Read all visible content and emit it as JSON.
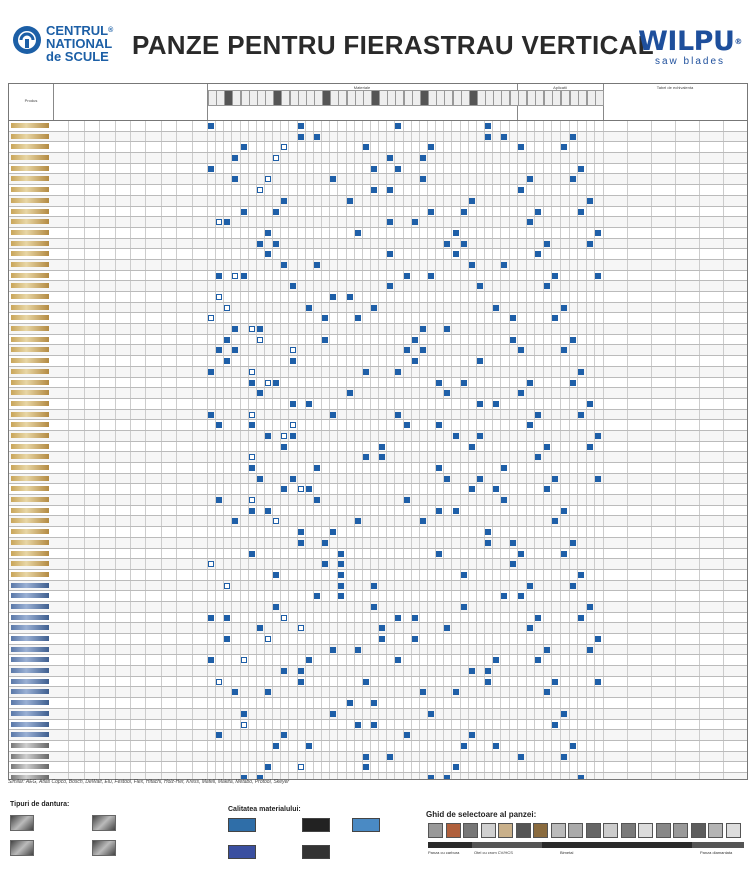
{
  "header": {
    "logo_line1": "CENTRUL",
    "logo_line2": "NATIONAL",
    "logo_line3": "de SCULE",
    "logo_reg": "®",
    "title": "PANZE PENTRU FIERASTRAU VERTICAL",
    "brand": "WILPU",
    "brand_reg": "®",
    "brand_tagline": "saw blades"
  },
  "table": {
    "col_product": "Produs",
    "group_materials": "Materiale",
    "group_applications": "Aplicatii",
    "group_equivalents": "Tabel de echivalenta",
    "first_rows": [
      "",
      "",
      "",
      ""
    ]
  },
  "footnote": "Similar: AEG, Atlas Copco, Bosch, DeWalt, Elu, Festool, Flex, Hitachi, Holz-Her, Kress, Mafell, Makita, Metabo, Protool, Skeyer",
  "legend": {
    "teeth_title": "Tipuri de dantura:",
    "teeth": [
      "",
      "",
      "",
      ""
    ],
    "material_title": "Calitatea materialului:",
    "materials": [
      {
        "code": "",
        "text": "",
        "color": "#2f6ea8"
      },
      {
        "code": "",
        "text": "",
        "color": "#3a4fa0"
      },
      {
        "code": "",
        "text": "",
        "color": "#222222"
      },
      {
        "code": "",
        "text": "",
        "color": "#333333"
      },
      {
        "code": "",
        "text": "",
        "color": "#4a8ac4"
      }
    ],
    "selector_title": "Ghid de selectoare al panzei:",
    "selector_groups": [
      "Panza cu carbura",
      "Otel cu crom CV/HCS",
      "Bimetal",
      "Panza diamantata"
    ]
  },
  "colors": {
    "accent": "#1e5fa8",
    "brand": "#1e4f9c"
  }
}
